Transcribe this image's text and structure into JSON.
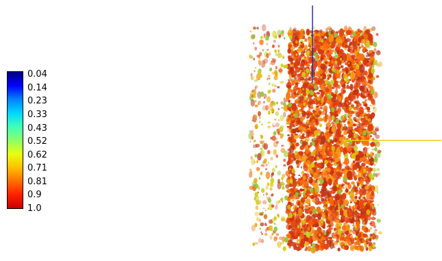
{
  "colorbar": {
    "labels": [
      "0.04",
      "0.14",
      "0.23",
      "0.33",
      "0.43",
      "0.52",
      "0.62",
      "0.71",
      "0.81",
      "0.9",
      "1.0"
    ],
    "colors": [
      "#00007f",
      "#0000ff",
      "#0080ff",
      "#00d6ff",
      "#3fffb8",
      "#8aff6b",
      "#e6ff0f",
      "#ffc000",
      "#ff7000",
      "#ff2000",
      "#c80000"
    ]
  },
  "scene": {
    "object": "3D isosurface blobs colored by scalar value",
    "axis_colors": {
      "vertical_axis": "#2a2ab8",
      "horizontal_axis": "#e8d400"
    },
    "dominant_colors": [
      "#e24a12",
      "#f07a10",
      "#d8c80a",
      "#b8341c",
      "#8ec83a"
    ]
  }
}
